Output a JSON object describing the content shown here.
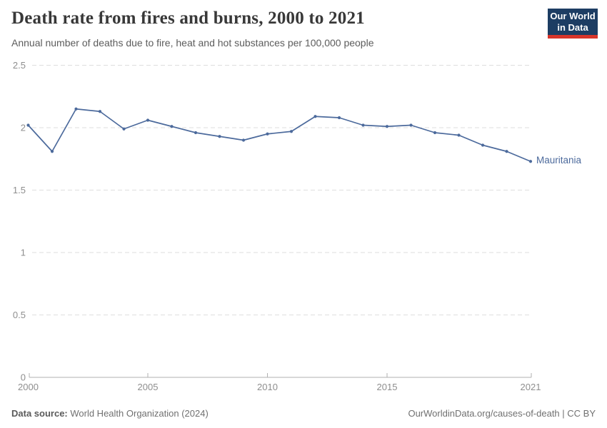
{
  "header": {
    "title": "Death rate from fires and burns, 2000 to 2021",
    "subtitle": "Annual number of deaths due to fire, heat and hot substances per 100,000 people",
    "logo": {
      "line1": "Our World",
      "line2": "in Data"
    }
  },
  "chart_data": {
    "type": "line",
    "title": "Death rate from fires and burns, 2000 to 2021",
    "x": [
      2000,
      2001,
      2002,
      2003,
      2004,
      2005,
      2006,
      2007,
      2008,
      2009,
      2010,
      2011,
      2012,
      2013,
      2014,
      2015,
      2016,
      2017,
      2018,
      2019,
      2020,
      2021
    ],
    "series": [
      {
        "name": "Mauritania",
        "color": "#4c6a9c",
        "values": [
          2.02,
          1.81,
          2.15,
          2.13,
          1.99,
          2.06,
          2.01,
          1.96,
          1.93,
          1.9,
          1.95,
          1.97,
          2.09,
          2.08,
          2.02,
          2.01,
          2.02,
          1.96,
          1.94,
          1.86,
          1.81,
          1.73
        ]
      }
    ],
    "x_ticks": [
      2000,
      2005,
      2010,
      2015,
      2021
    ],
    "y_ticks": [
      0,
      0.5,
      1,
      1.5,
      2,
      2.5
    ],
    "xlim": [
      2000,
      2021
    ],
    "ylim": [
      0,
      2.5
    ],
    "ylabel": "",
    "xlabel": "",
    "grid": "horizontal-dashed",
    "legend": "end-of-line-label"
  },
  "footer": {
    "source_label": "Data source:",
    "source_value": " World Health Organization (2024)",
    "credit": "OurWorldinData.org/causes-of-death | CC BY"
  },
  "colors": {
    "accent_line": "#4c6a9c",
    "logo_navy": "#1d3d63",
    "logo_red": "#d8352a",
    "grid": "#dedede",
    "axis": "#b0b0b0",
    "tick_text": "#8e8e8e"
  }
}
